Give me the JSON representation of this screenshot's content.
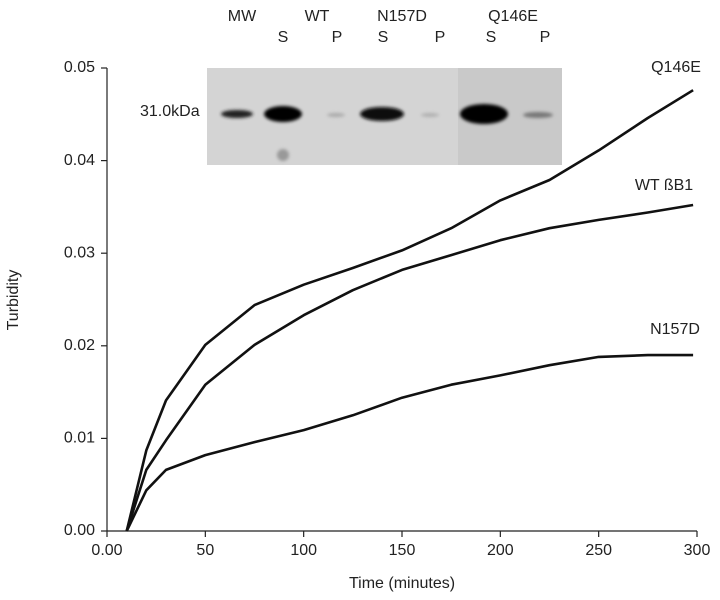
{
  "chart_data": {
    "type": "line",
    "x_label": "Time (minutes)",
    "y_label": "Turbidity",
    "x": [
      10,
      20,
      30,
      50,
      75,
      100,
      125,
      150,
      175,
      200,
      225,
      250,
      275,
      298
    ],
    "series": [
      {
        "name": "Q146E",
        "color": "#111111",
        "values": [
          0,
          0.0087,
          0.0141,
          0.0201,
          0.0244,
          0.0266,
          0.0284,
          0.0303,
          0.0327,
          0.0357,
          0.0379,
          0.0411,
          0.0446,
          0.0476
        ]
      },
      {
        "name": "WT ßB1",
        "color": "#111111",
        "values": [
          0,
          0.0066,
          0.0098,
          0.0158,
          0.0201,
          0.0233,
          0.026,
          0.0282,
          0.0298,
          0.0314,
          0.0327,
          0.0336,
          0.0344,
          0.0352
        ]
      },
      {
        "name": "N157D",
        "color": "#111111",
        "values": [
          0,
          0.0044,
          0.0066,
          0.0082,
          0.0096,
          0.0109,
          0.0125,
          0.0144,
          0.0158,
          0.0168,
          0.0179,
          0.0188,
          0.019,
          0.019
        ]
      }
    ],
    "xlim": [
      0,
      300
    ],
    "xticks": [
      {
        "value": 0,
        "label": "0.00"
      },
      50,
      100,
      150,
      200,
      250,
      300
    ],
    "ylim": [
      0,
      0.05
    ],
    "yticks": [
      {
        "value": 0,
        "label": "0.00"
      },
      0.01,
      0.02,
      0.03,
      0.04,
      0.05
    ],
    "grid": false,
    "inset": {
      "groups": [
        "MW",
        "WT",
        "N157D",
        "Q146E"
      ],
      "lanes": [
        "S",
        "P",
        "S",
        "P",
        "S",
        "P"
      ],
      "marker": "31.0kDa"
    }
  }
}
